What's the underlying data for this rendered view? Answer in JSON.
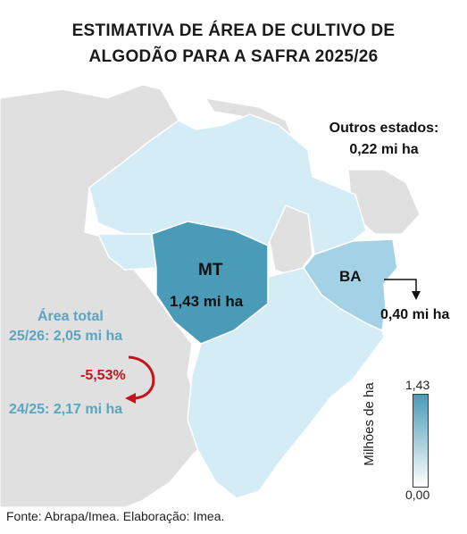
{
  "title_line1": "ESTIMATIVA DE ÁREA DE CULTIVO DE",
  "title_line2": "ALGODÃO PARA A SAFRA 2025/26",
  "outros": {
    "label": "Outros estados:",
    "value": "0,22 mi ha"
  },
  "mt": {
    "name": "MT",
    "value": "1,43 mi ha",
    "color": "#4a9bb8"
  },
  "ba": {
    "name": "BA",
    "value": "0,40 mi ha",
    "color": "#a3d2e6"
  },
  "area_total": {
    "label": "Área total",
    "current": "25/26: 2,05 mi ha",
    "previous": "24/25: 2,17 mi ha",
    "change": "-5,53%",
    "text_color": "#5aa5c2",
    "change_color": "#c0161c"
  },
  "legend": {
    "max": "1,43",
    "min": "0,00",
    "unit": "Milhões de ha"
  },
  "source": "Fonte: Abrapa/Imea. Elaboração: Imea.",
  "colors": {
    "other_states": "#d4ecf5",
    "neighbors": "#e0e0e0",
    "background": "#ffffff"
  }
}
